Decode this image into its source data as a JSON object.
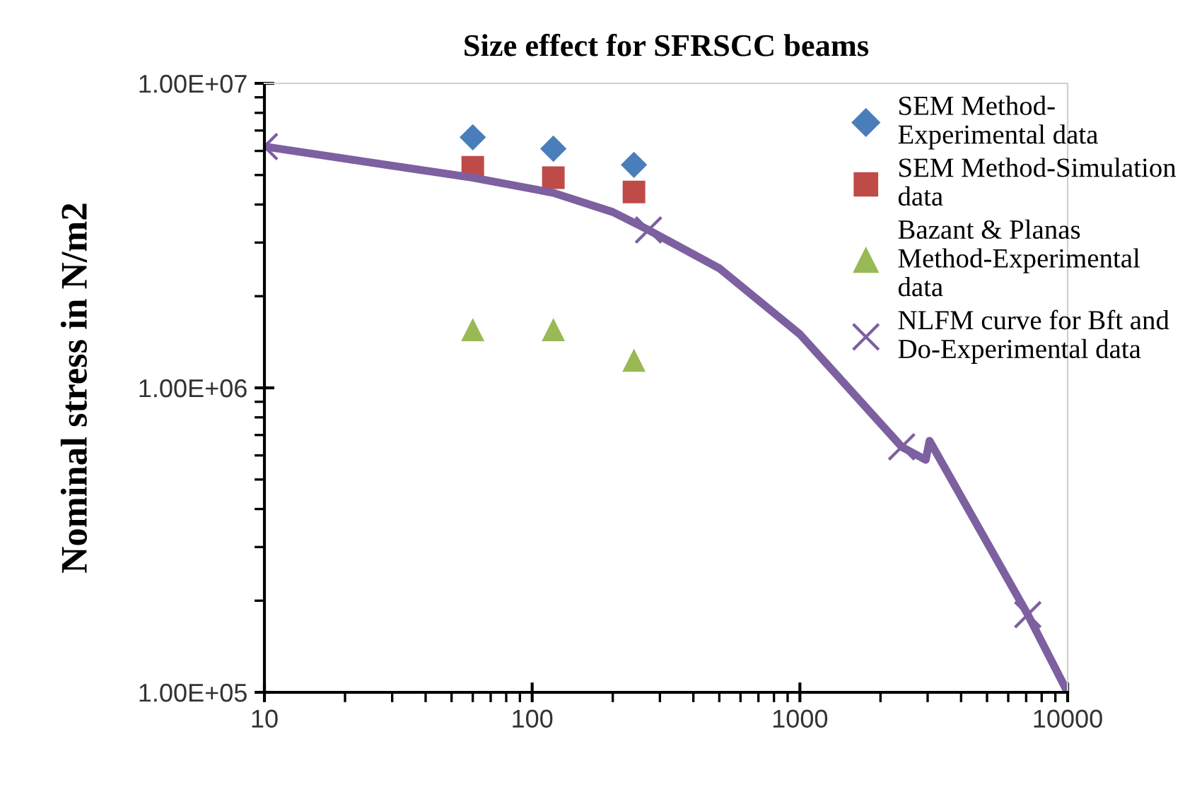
{
  "chart_data": {
    "type": "scatter",
    "title": "Size effect for SFRSCC beams",
    "ylabel": "Nominal stress in N/m2",
    "log": "xy",
    "xlim": [
      10,
      10000
    ],
    "xticks": [
      10,
      100,
      1000,
      10000
    ],
    "ylim": [
      100000,
      10000000
    ],
    "yticks": [
      {
        "value": 100000,
        "label": "1.00E+05"
      },
      {
        "value": 1000000,
        "label": "1.00E+06"
      },
      {
        "value": 10000000,
        "label": "1.00E+07"
      }
    ],
    "grid": false,
    "legend": "top right",
    "series": [
      {
        "name": "SEM Method-Experimental data",
        "marker": "diamond",
        "color": "#4a7ebb",
        "x": [
          60,
          120,
          240
        ],
        "values": [
          6650000,
          6100000,
          5400000
        ]
      },
      {
        "name": "SEM Method-Simulation data",
        "marker": "square",
        "color": "#be4b48",
        "x": [
          60,
          120,
          240
        ],
        "values": [
          5300000,
          4900000,
          4400000
        ]
      },
      {
        "name": "Bazant & Planas Method-Experimental data",
        "marker": "triangle",
        "color": "#98b954",
        "x": [
          60,
          120,
          240
        ],
        "values": [
          1550000,
          1550000,
          1230000
        ]
      },
      {
        "type": "line",
        "marker": "none",
        "color": "#7d60a0",
        "x": [
          10,
          60,
          120,
          200,
          272,
          500,
          1000,
          2400,
          2950,
          3050,
          7100,
          10000
        ],
        "values": [
          6200000,
          4900000,
          4370000,
          3780000,
          3300000,
          2470000,
          1500000,
          640000,
          580000,
          670000,
          180000,
          100000
        ]
      },
      {
        "name": "NLFM curve for Bft and Do-Experimental data",
        "marker": "cross",
        "color": "#7d60a0",
        "x": [
          10,
          272,
          2400,
          7100
        ],
        "values": [
          6200000,
          3300000,
          640000,
          180000
        ]
      }
    ]
  }
}
